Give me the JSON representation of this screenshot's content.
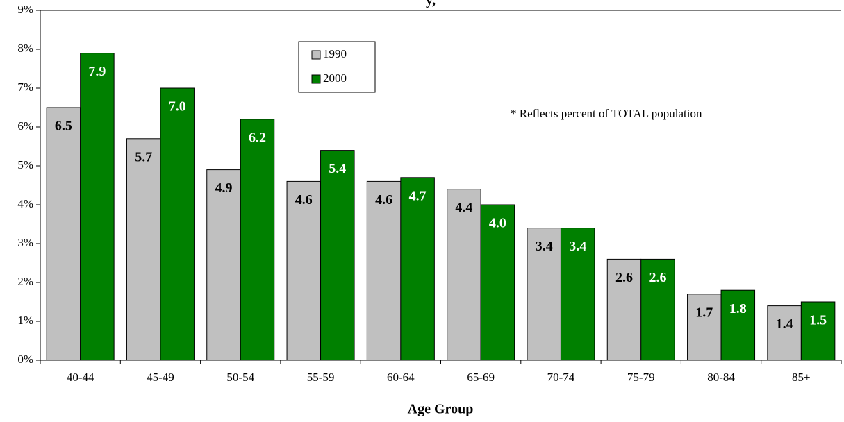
{
  "chart_data": {
    "type": "bar",
    "title": "y,",
    "annotation": "* Reflects percent of TOTAL population",
    "x_label": "Age Group",
    "categories": [
      "40-44",
      "45-49",
      "50-54",
      "55-59",
      "60-64",
      "65-69",
      "70-74",
      "75-79",
      "80-84",
      "85+"
    ],
    "series": [
      {
        "name": "1990",
        "color": "#c0c0c0",
        "label_color": "#000000",
        "values": [
          6.5,
          5.7,
          4.9,
          4.6,
          4.6,
          4.4,
          3.4,
          2.6,
          1.7,
          1.4
        ],
        "value_labels": [
          "6.5",
          "5.7",
          "4.9",
          "4.6",
          "4.6",
          "4.4",
          "3.4",
          "2.6",
          "1.7",
          "1.4"
        ]
      },
      {
        "name": "2000",
        "color": "#008000",
        "label_color": "#ffffff",
        "values": [
          7.9,
          7,
          6.2,
          5.4,
          4.7,
          4,
          3.4,
          2.6,
          1.8,
          1.5
        ],
        "value_labels": [
          "7.9",
          "7.0",
          "6.2",
          "5.4",
          "4.7",
          "4.0",
          "3.4",
          "2.6",
          "1.8",
          "1.5"
        ]
      }
    ],
    "ylim": [
      0,
      9
    ],
    "yticks": [
      {
        "value": 0,
        "label": "0%"
      },
      {
        "value": 1,
        "label": "1%"
      },
      {
        "value": 2,
        "label": "2%"
      },
      {
        "value": 3,
        "label": "3%"
      },
      {
        "value": 4,
        "label": "4%"
      },
      {
        "value": 5,
        "label": "5%"
      },
      {
        "value": 6,
        "label": "6%"
      },
      {
        "value": 7,
        "label": "7%"
      },
      {
        "value": 8,
        "label": "8%"
      },
      {
        "value": 9,
        "label": "9%"
      }
    ],
    "grid": false,
    "legend": "upper center"
  }
}
